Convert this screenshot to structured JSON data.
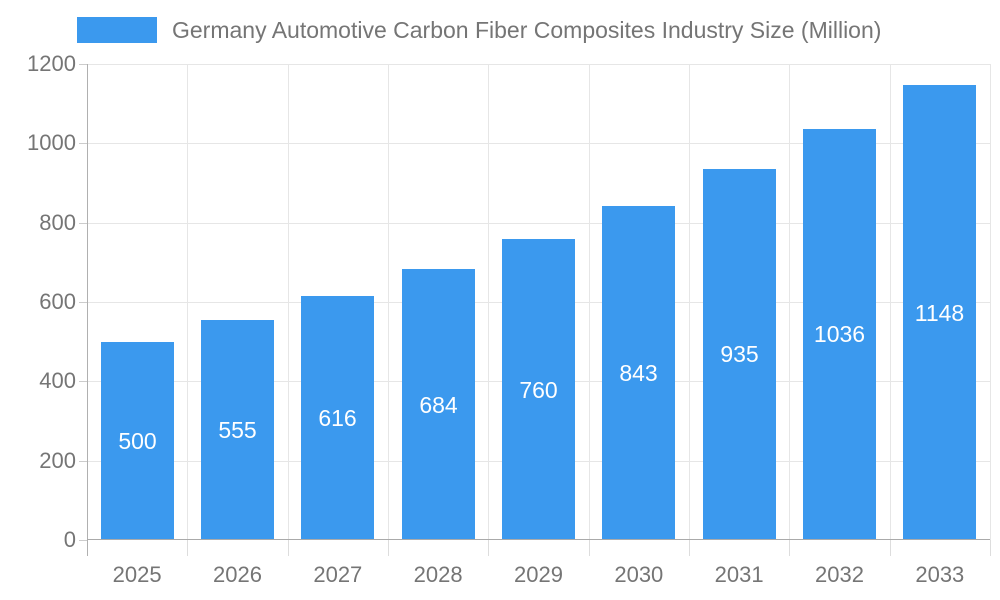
{
  "legend": {
    "label": "Germany Automotive Carbon Fiber Composites Industry Size (Million)"
  },
  "chart_data": {
    "type": "bar",
    "title": "Germany Automotive Carbon Fiber Composites Industry Size (Million)",
    "categories": [
      "2025",
      "2026",
      "2027",
      "2028",
      "2029",
      "2030",
      "2031",
      "2032",
      "2033"
    ],
    "values": [
      500,
      555,
      616,
      684,
      760,
      843,
      935,
      1036,
      1148
    ],
    "xlabel": "",
    "ylabel": "",
    "ylim": [
      0,
      1200
    ],
    "yticks": [
      0,
      200,
      400,
      600,
      800,
      1000,
      1200
    ],
    "grid": true,
    "legend_position": "top-left",
    "colors": {
      "bar": "#3b99ee",
      "bar_value_label": "#ffffff",
      "axis_text": "#757575",
      "gridline": "#e6e6e6",
      "axis_line": "#aaaaaa"
    }
  }
}
